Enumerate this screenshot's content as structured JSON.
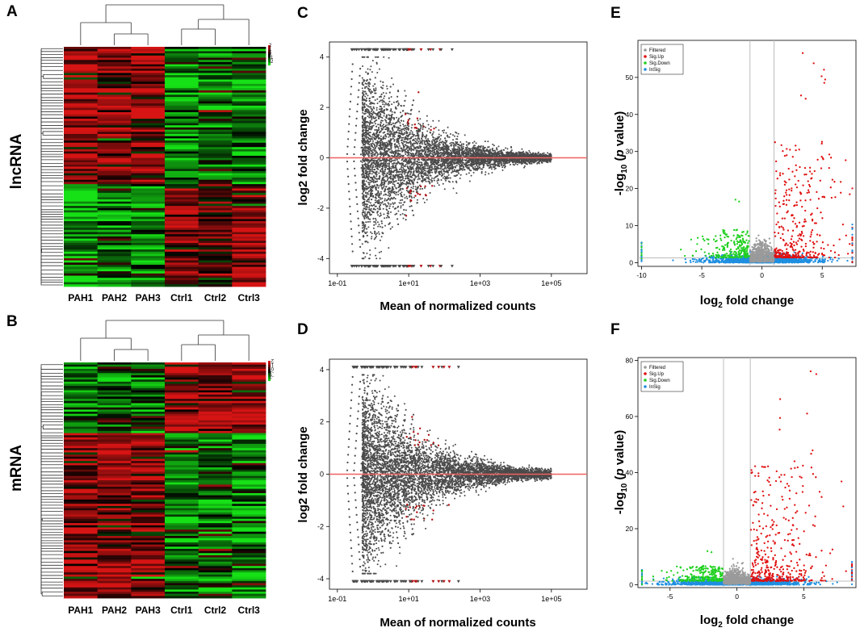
{
  "figure": {
    "panel_letters": [
      "A",
      "B",
      "C",
      "D",
      "E",
      "F"
    ],
    "colors": {
      "heat_high": "#d61414",
      "heat_mid": "#000000",
      "heat_low": "#16e016",
      "ma_point": "#4a4a4a",
      "sig_point": "#b01010",
      "zero_line": "#f06060",
      "filtered": "#9a9a9a",
      "sig_up": "#e01010",
      "sig_down": "#20d020",
      "insig": "#1f8fe0"
    }
  },
  "chart_data": [
    {
      "panel": "A",
      "type": "heatmap",
      "row_label": "lncRNA",
      "columns": [
        "PAH1",
        "PAH2",
        "PAH3",
        "Ctrl1",
        "Ctrl2",
        "Ctrl3"
      ],
      "color_key": {
        "ticks": [
          "2",
          "1",
          "0",
          "-1",
          "-2"
        ],
        "range": [
          -2,
          2
        ]
      },
      "column_clusters": [
        [
          "PAH1",
          "PAH2",
          "PAH3"
        ],
        [
          "Ctrl1",
          "Ctrl2",
          "Ctrl3"
        ]
      ],
      "blocks": [
        {
          "rows_fraction": 0.57,
          "values": [
            1.4,
            1.2,
            1.3,
            -1.2,
            -0.8,
            -1.0
          ]
        },
        {
          "rows_fraction": 0.43,
          "values": [
            -1.2,
            -0.6,
            -0.9,
            1.3,
            0.9,
            1.2
          ]
        }
      ]
    },
    {
      "panel": "B",
      "type": "heatmap",
      "row_label": "mRNA",
      "columns": [
        "PAH1",
        "PAH2",
        "PAH3",
        "Ctrl1",
        "Ctrl2",
        "Ctrl3"
      ],
      "color_key": {
        "ticks": [
          "2",
          "1",
          "0",
          "-1",
          "-2"
        ],
        "range": [
          -2,
          2
        ]
      },
      "column_clusters": [
        [
          "PAH1",
          "PAH2",
          "PAH3"
        ],
        [
          "Ctrl1",
          "Ctrl2",
          "Ctrl3"
        ]
      ],
      "blocks": [
        {
          "rows_fraction": 0.3,
          "values": [
            -1.0,
            -0.8,
            -0.9,
            1.3,
            1.1,
            1.2
          ]
        },
        {
          "rows_fraction": 0.7,
          "values": [
            1.2,
            1.3,
            1.1,
            -1.2,
            -0.9,
            -1.1
          ]
        }
      ]
    },
    {
      "panel": "C",
      "type": "scatter",
      "subtype": "MA plot",
      "xlabel": "Mean of normalized counts",
      "ylabel": "log2 fold change",
      "x_scale": "log10",
      "xlim": [
        0.06,
        1000000
      ],
      "ylim": [
        -4.6,
        4.6
      ],
      "x_ticks": [
        "1e-01",
        "1e+01",
        "1e+03",
        "1e+05"
      ],
      "y_ticks": [
        -4,
        -2,
        0,
        2,
        4
      ],
      "hline": 0,
      "n_points": 5200,
      "seed": 11,
      "significance_strength": 0.9
    },
    {
      "panel": "D",
      "type": "scatter",
      "subtype": "MA plot",
      "xlabel": "Mean of normalized counts",
      "ylabel": "log2 fold change",
      "x_scale": "log10",
      "xlim": [
        0.06,
        1000000
      ],
      "ylim": [
        -4.4,
        4.4
      ],
      "x_ticks": [
        "1e-01",
        "1e+01",
        "1e+03",
        "1e+05"
      ],
      "y_ticks": [
        -4,
        -2,
        0,
        2,
        4
      ],
      "hline": 0,
      "n_points": 5800,
      "seed": 23,
      "significance_strength": 1.2
    },
    {
      "panel": "E",
      "type": "scatter",
      "subtype": "volcano",
      "xlabel": "log2 fold change",
      "ylabel": "-log10 (p value)",
      "xlim": [
        -10.3,
        7.8
      ],
      "ylim": [
        -1,
        60
      ],
      "x_ticks": [
        -10,
        -5,
        0,
        5
      ],
      "y_ticks": [
        0,
        10,
        20,
        30,
        40,
        50
      ],
      "vlines": [
        -1,
        1
      ],
      "hline": 1.3,
      "legend": [
        "Filtered",
        "Sig.Up",
        "Sig.Down",
        "InSig"
      ],
      "legend_position": "top-left",
      "n_points": 2600,
      "seed": 37,
      "max_up": 57,
      "max_down": 17
    },
    {
      "panel": "F",
      "type": "scatter",
      "subtype": "volcano",
      "xlabel": "log2 fold change",
      "ylabel": "-log10 (p value)",
      "xlim": [
        -7.4,
        8.9
      ],
      "ylim": [
        -1,
        81
      ],
      "x_ticks": [
        -5,
        0,
        5
      ],
      "y_ticks": [
        0,
        20,
        40,
        60,
        80
      ],
      "vlines": [
        -1,
        1
      ],
      "hline": 1.3,
      "legend": [
        "Filtered",
        "Sig.Up",
        "Sig.Down",
        "InSig"
      ],
      "legend_position": "top-left",
      "n_points": 3000,
      "seed": 53,
      "max_up": 78,
      "max_down": 12
    }
  ]
}
